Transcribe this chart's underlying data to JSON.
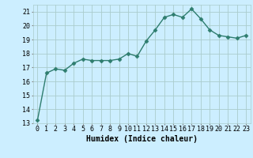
{
  "x": [
    0,
    1,
    2,
    3,
    4,
    5,
    6,
    7,
    8,
    9,
    10,
    11,
    12,
    13,
    14,
    15,
    16,
    17,
    18,
    19,
    20,
    21,
    22,
    23
  ],
  "y": [
    13.2,
    16.6,
    16.9,
    16.8,
    17.3,
    17.6,
    17.5,
    17.5,
    17.5,
    17.6,
    18.0,
    17.8,
    18.9,
    19.7,
    20.6,
    20.8,
    20.6,
    21.2,
    20.5,
    19.7,
    19.3,
    19.2,
    19.1,
    19.3
  ],
  "line_color": "#2e7d6e",
  "marker": "D",
  "markersize": 2.5,
  "linewidth": 1.0,
  "bg_color": "#cceeff",
  "grid_color": "#aacccc",
  "xlabel": "Humidex (Indice chaleur)",
  "xlabel_fontsize": 7,
  "ylim": [
    13,
    21.5
  ],
  "xlim": [
    -0.5,
    23.5
  ],
  "yticks": [
    13,
    14,
    15,
    16,
    17,
    18,
    19,
    20,
    21
  ],
  "xticks": [
    0,
    1,
    2,
    3,
    4,
    5,
    6,
    7,
    8,
    9,
    10,
    11,
    12,
    13,
    14,
    15,
    16,
    17,
    18,
    19,
    20,
    21,
    22,
    23
  ],
  "tick_fontsize": 6
}
